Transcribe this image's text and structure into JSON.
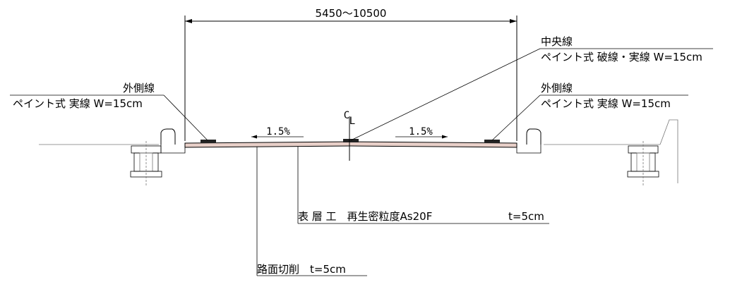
{
  "dimension": {
    "width_range": "5450〜10500"
  },
  "center_line": {
    "title": "中央線",
    "spec": "ペイント式 破線・実線 W=15cm",
    "cl_mark_c": "C",
    "cl_mark_l": "L"
  },
  "outer_line_left": {
    "title": "外側線",
    "spec": "ペイント式 実線 W=15cm"
  },
  "outer_line_right": {
    "title": "外側線",
    "spec": "ペイント式 実線 W=15cm"
  },
  "slope_left": {
    "value": "1.5%"
  },
  "slope_right": {
    "value": "1.5%"
  },
  "surface_layer": {
    "label": "表 層 工　再生密粒度As20F",
    "thickness": "t=5cm"
  },
  "milling": {
    "label": "路面切削　t=5cm"
  },
  "colors": {
    "line": "#000000",
    "pavement": "#e8cfc8",
    "marking": "#222222"
  }
}
